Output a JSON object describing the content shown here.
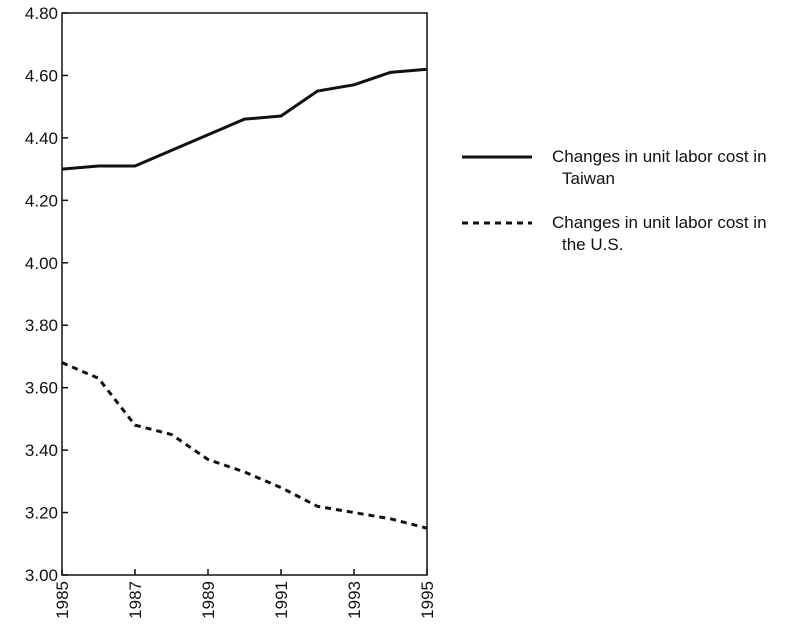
{
  "chart_data": {
    "type": "line",
    "x": [
      1985,
      1986,
      1987,
      1988,
      1989,
      1990,
      1991,
      1992,
      1993,
      1994,
      1995
    ],
    "series": [
      {
        "name": "Changes in unit labor cost in Taiwan",
        "color": "#111111",
        "style": "solid",
        "values": [
          4.3,
          4.31,
          4.31,
          4.36,
          4.41,
          4.46,
          4.47,
          4.55,
          4.57,
          4.61,
          4.62
        ]
      },
      {
        "name": "Changes in unit labor cost in the U.S.",
        "color": "#111111",
        "style": "dashed",
        "values": [
          3.68,
          3.63,
          3.48,
          3.45,
          3.37,
          3.33,
          3.28,
          3.22,
          3.2,
          3.18,
          3.15
        ]
      }
    ],
    "xlim": [
      1985,
      1995
    ],
    "xticks": [
      1985,
      1987,
      1989,
      1991,
      1993,
      1995
    ],
    "ylim": [
      3.0,
      4.8
    ],
    "yticks": [
      {
        "value": 3.0,
        "label": "3.00"
      },
      {
        "value": 3.2,
        "label": "3.20"
      },
      {
        "value": 3.4,
        "label": "3.40"
      },
      {
        "value": 3.6,
        "label": "3.60"
      },
      {
        "value": 3.8,
        "label": "3.80"
      },
      {
        "value": 4.0,
        "label": "4.00"
      },
      {
        "value": 4.2,
        "label": "4.20"
      },
      {
        "value": 4.4,
        "label": "4.40"
      },
      {
        "value": 4.6,
        "label": "4.60"
      },
      {
        "value": 4.8,
        "label": "4.80"
      }
    ],
    "grid": false
  }
}
